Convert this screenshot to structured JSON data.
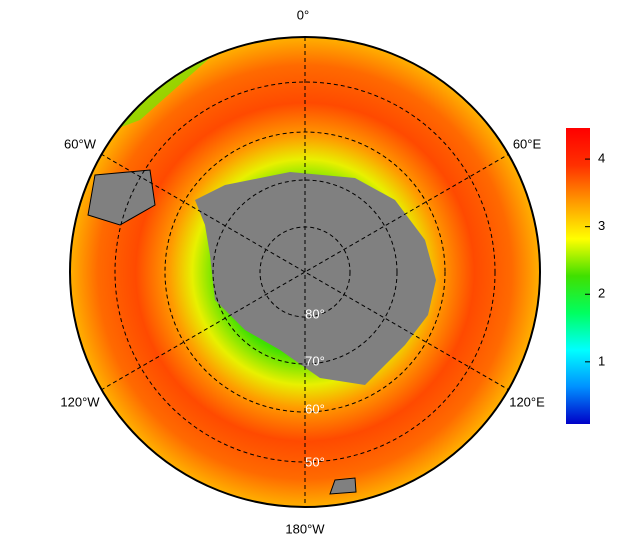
{
  "map": {
    "longitude_labels": [
      "0°",
      "60°E",
      "120°E",
      "180°W",
      "120°W",
      "60°W"
    ],
    "latitude_labels": [
      "80°",
      "70°",
      "60°",
      "50°"
    ]
  },
  "colorbar": {
    "range": [
      0.08,
      4.46
    ],
    "ticks": [
      1,
      2,
      3,
      4
    ],
    "colors": [
      "#0000c8",
      "#0090ff",
      "#00ffff",
      "#00ff60",
      "#40e000",
      "#ffff00",
      "#ff9a00",
      "#ff3000",
      "#ff0000"
    ]
  }
}
